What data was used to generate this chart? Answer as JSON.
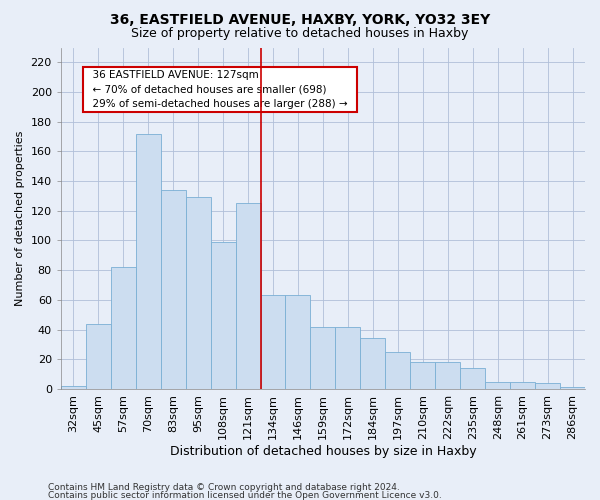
{
  "title": "36, EASTFIELD AVENUE, HAXBY, YORK, YO32 3EY",
  "subtitle": "Size of property relative to detached houses in Haxby",
  "xlabel": "Distribution of detached houses by size in Haxby",
  "ylabel": "Number of detached properties",
  "categories": [
    "32sqm",
    "45sqm",
    "57sqm",
    "70sqm",
    "83sqm",
    "95sqm",
    "108sqm",
    "121sqm",
    "134sqm",
    "146sqm",
    "159sqm",
    "172sqm",
    "184sqm",
    "197sqm",
    "210sqm",
    "222sqm",
    "235sqm",
    "248sqm",
    "261sqm",
    "273sqm",
    "286sqm"
  ],
  "values": [
    2,
    44,
    82,
    172,
    134,
    129,
    99,
    125,
    63,
    63,
    42,
    42,
    34,
    25,
    18,
    18,
    14,
    5,
    5,
    4,
    1
  ],
  "bar_color": "#ccddf0",
  "bar_edge_color": "#7aafd4",
  "vline_color": "#cc0000",
  "annotation_text": "  36 EASTFIELD AVENUE: 127sqm  \n  ← 70% of detached houses are smaller (698)  \n  29% of semi-detached houses are larger (288) →  ",
  "annotation_box_facecolor": "#ffffff",
  "annotation_box_edgecolor": "#cc0000",
  "ylim": [
    0,
    230
  ],
  "yticks": [
    0,
    20,
    40,
    60,
    80,
    100,
    120,
    140,
    160,
    180,
    200,
    220
  ],
  "title_fontsize": 10,
  "subtitle_fontsize": 9,
  "tick_fontsize": 8,
  "ylabel_fontsize": 8,
  "xlabel_fontsize": 9,
  "footer_fontsize": 6.5,
  "background_color": "#e8eef8",
  "footer_line1": "Contains HM Land Registry data © Crown copyright and database right 2024.",
  "footer_line2": "Contains public sector information licensed under the Open Government Licence v3.0."
}
